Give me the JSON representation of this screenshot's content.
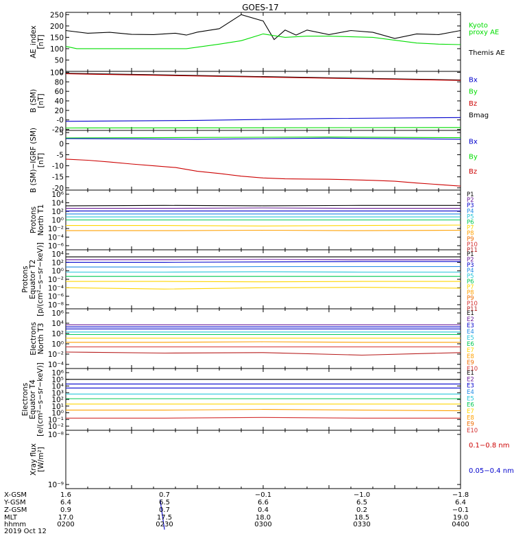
{
  "title": "GOES-17",
  "time_axis": {
    "ticks": [
      "0200",
      "0230",
      "0300",
      "0330",
      "0400"
    ],
    "date": "2019 Oct 12"
  },
  "ephemeris": {
    "labels": [
      "X-GSM",
      "Y-GSM",
      "Z-GSM",
      "MLT",
      "hhmm"
    ],
    "columns": [
      [
        "1.6",
        "6.4",
        "0.9",
        "17.0",
        "0200"
      ],
      [
        "0.7",
        "6.5",
        "0.7",
        "17.5",
        "0230"
      ],
      [
        "−0.1",
        "6.6",
        "0.4",
        "18.0",
        "0300"
      ],
      [
        "−1.0",
        "6.5",
        "0.2",
        "18.5",
        "0330"
      ],
      [
        "−1.8",
        "6.4",
        "−0.1",
        "19.0",
        "0400"
      ]
    ]
  },
  "colors": {
    "black": "#000000",
    "green": "#00dd00",
    "blue": "#0000cc",
    "red": "#cc0000",
    "p_series": [
      "#000000",
      "#6a1b9a",
      "#0000cc",
      "#1e88e5",
      "#26c6da",
      "#00c853",
      "#ffd600",
      "#ffa000",
      "#ef6c00",
      "#d32f2f",
      "#b71c1c"
    ]
  },
  "chart_data": [
    {
      "type": "line",
      "ylabel": "AE_index\n[nT]",
      "ylim": [
        0,
        260
      ],
      "yticks": [
        "0",
        "50",
        "100",
        "150",
        "200",
        "250"
      ],
      "legend": [
        {
          "text": "Kyoto",
          "color": "green"
        },
        {
          "text": "proxy AE",
          "color": "green"
        },
        {
          "text": "Themis AE",
          "color": "black"
        }
      ],
      "series": [
        {
          "name": "Themis AE",
          "color": "black",
          "x": [
            0,
            10,
            20,
            30,
            40,
            50,
            55,
            60,
            70,
            80,
            90,
            95,
            100,
            105,
            110,
            120,
            130,
            140,
            150,
            160,
            170,
            180
          ],
          "y": [
            180,
            168,
            172,
            163,
            162,
            168,
            160,
            173,
            188,
            250,
            222,
            140,
            182,
            160,
            182,
            162,
            180,
            172,
            145,
            165,
            162,
            180
          ]
        },
        {
          "name": "Kyoto proxy AE",
          "color": "green",
          "x": [
            0,
            5,
            20,
            40,
            55,
            70,
            80,
            90,
            100,
            110,
            120,
            140,
            160,
            170,
            180
          ],
          "y": [
            110,
            100,
            100,
            100,
            100,
            120,
            135,
            165,
            150,
            155,
            155,
            150,
            125,
            120,
            118
          ]
        }
      ]
    },
    {
      "type": "line",
      "ylabel": "B (SM)\n[nT]",
      "ylim": [
        -22,
        102
      ],
      "yticks": [
        "-20",
        "-0",
        "20",
        "40",
        "60",
        "80",
        "100"
      ],
      "legend": [
        {
          "text": "Bx",
          "color": "blue"
        },
        {
          "text": "By",
          "color": "green"
        },
        {
          "text": "Bz",
          "color": "red"
        },
        {
          "text": "Bmag",
          "color": "black"
        }
      ],
      "series": [
        {
          "name": "Bmag",
          "color": "black",
          "x": [
            0,
            180
          ],
          "y": [
            98,
            84
          ]
        },
        {
          "name": "Bz",
          "color": "red",
          "x": [
            0,
            180
          ],
          "y": [
            97,
            83
          ]
        },
        {
          "name": "Bx",
          "color": "blue",
          "x": [
            0,
            60,
            120,
            180
          ],
          "y": [
            -3,
            -1,
            3,
            5
          ]
        },
        {
          "name": "By",
          "color": "green",
          "x": [
            0,
            180
          ],
          "y": [
            -17,
            -16
          ]
        }
      ]
    },
    {
      "type": "line",
      "ylabel": "B (SM)−IGRF (SM)\n[nT]",
      "ylim": [
        -21,
        6
      ],
      "yticks": [
        "-20",
        "-15",
        "-10",
        "-5",
        "0",
        "5"
      ],
      "legend": [
        {
          "text": "Bx",
          "color": "blue"
        },
        {
          "text": "By",
          "color": "green"
        },
        {
          "text": "Bz",
          "color": "red"
        }
      ],
      "series": [
        {
          "name": "Bx",
          "color": "blue",
          "x": [
            0,
            60,
            120,
            180
          ],
          "y": [
            2.3,
            2.0,
            2.5,
            2.0
          ]
        },
        {
          "name": "By",
          "color": "green",
          "x": [
            0,
            60,
            120,
            180
          ],
          "y": [
            2.6,
            2.8,
            3.0,
            2.7
          ]
        },
        {
          "name": "Bz",
          "color": "red",
          "x": [
            0,
            10,
            20,
            30,
            40,
            50,
            60,
            70,
            80,
            90,
            100,
            110,
            120,
            130,
            140,
            150,
            160,
            170,
            180
          ],
          "y": [
            -7,
            -7.5,
            -8.3,
            -9.2,
            -10,
            -10.8,
            -12.5,
            -13.5,
            -14.7,
            -15.5,
            -15.9,
            -16.0,
            -16.1,
            -16.3,
            -16.6,
            -17.0,
            -17.8,
            -18.5,
            -19.2
          ]
        }
      ]
    },
    {
      "type": "line",
      "yscale": "log",
      "ylabel": "Protons\nNorth T1",
      "yticks": [
        "10⁶",
        "10⁴",
        "10²",
        "10⁰",
        "10⁻²",
        "10⁻⁴",
        "10⁻⁶"
      ],
      "legend": [
        "P1",
        "P2",
        "P3",
        "P4",
        "P5",
        "P6",
        "P7",
        "P8",
        "P9",
        "P10",
        "P11"
      ],
      "series": [
        {
          "name": "P1",
          "color_index": 0,
          "y": [
            3.3,
            3.4,
            3.3,
            3.4,
            3.4
          ]
        },
        {
          "name": "P2",
          "color_index": 1,
          "y": [
            2.7,
            2.7,
            2.8,
            2.7,
            2.7
          ]
        },
        {
          "name": "P3",
          "color_index": 2,
          "y": [
            2.1,
            2.1,
            2.1,
            2.1,
            2.1
          ]
        },
        {
          "name": "P4",
          "color_index": 3,
          "y": [
            1.4,
            1.4,
            1.4,
            1.4,
            1.4
          ]
        },
        {
          "name": "P5",
          "color_index": 4,
          "y": [
            0.7,
            0.7,
            0.7,
            0.7,
            0.7
          ]
        },
        {
          "name": "P6",
          "color_index": 5,
          "y": [
            0.0,
            0.0,
            0.0,
            0.0,
            0.0
          ]
        },
        {
          "name": "P7",
          "color_index": 6,
          "y": [
            -1.3,
            -1.3,
            -1.4,
            -1.3,
            -1.2
          ]
        },
        {
          "name": "P8",
          "color_index": 7,
          "y": [
            -2.5,
            -2.5,
            -2.4,
            -2.5,
            -2.4
          ]
        }
      ]
    },
    {
      "type": "line",
      "yscale": "log",
      "ylabel": "Protons\nEquator T2\n[p/(cm²−s−sr−keV)]",
      "yticks": [
        "10⁴",
        "10²",
        "10⁰",
        "10⁻²",
        "10⁻⁴",
        "10⁻⁶",
        "10⁻⁸"
      ],
      "legend": [
        "P1",
        "P2",
        "P3",
        "P4",
        "P5",
        "P6",
        "P7",
        "P8",
        "P9",
        "P10",
        "P11"
      ],
      "series": [
        {
          "name": "P1",
          "color_index": 0,
          "y": [
            3.3,
            3.3,
            3.3,
            3.3,
            3.3
          ]
        },
        {
          "name": "P2",
          "color_index": 1,
          "y": [
            2.6,
            2.6,
            2.7,
            2.6,
            2.6
          ]
        },
        {
          "name": "P3",
          "color_index": 2,
          "y": [
            2.0,
            2.0,
            2.1,
            2.2,
            2.2
          ]
        },
        {
          "name": "P4",
          "color_index": 3,
          "y": [
            0.9,
            0.9,
            1.0,
            1.0,
            1.0
          ]
        },
        {
          "name": "P5",
          "color_index": 4,
          "y": [
            -0.3,
            -0.3,
            -0.2,
            -0.3,
            -0.3
          ]
        },
        {
          "name": "P6",
          "color_index": 5,
          "y": [
            -1.3,
            -1.3,
            -1.3,
            -1.3,
            -1.3
          ]
        },
        {
          "name": "P7",
          "color_index": 6,
          "y": [
            -2.5,
            -2.5,
            -2.6,
            -2.5,
            -2.5
          ]
        },
        {
          "name": "P8",
          "color_index": 6,
          "y": [
            -4.0,
            -4.3,
            -4.0,
            -3.9,
            -4.1
          ]
        }
      ]
    },
    {
      "type": "line",
      "yscale": "log",
      "ylabel": "Electrons\nNorth T3",
      "yticks": [
        "10⁶",
        "10⁴",
        "10²",
        "10⁰",
        "10⁻²",
        "10⁻⁴"
      ],
      "legend": [
        "E1",
        "E2",
        "E3",
        "E4",
        "E5",
        "E6",
        "E7",
        "E8",
        "E9",
        "E10"
      ],
      "series": [
        {
          "name": "E1",
          "color_index": 1,
          "y": [
            3.7,
            3.7,
            3.7,
            3.7,
            3.7
          ]
        },
        {
          "name": "E2",
          "color_index": 2,
          "y": [
            3.3,
            3.3,
            3.3,
            3.3,
            3.3
          ]
        },
        {
          "name": "E3",
          "color_index": 2,
          "y": [
            2.9,
            2.9,
            2.9,
            2.9,
            2.9
          ]
        },
        {
          "name": "E4",
          "color_index": 4,
          "y": [
            2.3,
            2.3,
            2.3,
            2.3,
            2.3
          ]
        },
        {
          "name": "E5",
          "color_index": 5,
          "y": [
            1.8,
            1.8,
            1.8,
            1.8,
            1.8
          ]
        },
        {
          "name": "E6",
          "color_index": 6,
          "y": [
            1.1,
            1.1,
            1.1,
            1.1,
            1.1
          ]
        },
        {
          "name": "E7",
          "color_index": 7,
          "y": [
            0.3,
            0.3,
            0.4,
            0.3,
            0.3
          ]
        },
        {
          "name": "E8",
          "color_index": 9,
          "y": [
            -0.6,
            -0.6,
            -0.6,
            -0.6,
            -0.6
          ]
        },
        {
          "name": "E9",
          "color_index": 10,
          "y": [
            -1.6,
            -1.8,
            -1.7,
            -2.2,
            -1.7
          ]
        }
      ]
    },
    {
      "type": "line",
      "yscale": "log",
      "ylabel": "Electrons\nEquator T4\n[e/(cm²−s−sr−keV)]",
      "yticks": [
        "10⁶",
        "10⁵",
        "10⁴",
        "10³",
        "10²",
        "10¹",
        "10⁰",
        "10⁻¹",
        "10⁻²"
      ],
      "legend": [
        "E1",
        "E2",
        "E3",
        "E4",
        "E5",
        "E6",
        "E7",
        "E8",
        "E9",
        "E10"
      ],
      "series": [
        {
          "name": "E1",
          "color_index": 0,
          "y": [
            5.0,
            5.0,
            5.0,
            5.0,
            5.0
          ]
        },
        {
          "name": "E2",
          "color_index": 2,
          "y": [
            4.3,
            4.3,
            4.3,
            4.3,
            4.3
          ]
        },
        {
          "name": "E3",
          "color_index": 2,
          "y": [
            3.7,
            3.7,
            3.7,
            3.7,
            3.7
          ]
        },
        {
          "name": "E4",
          "color_index": 4,
          "y": [
            2.8,
            2.8,
            2.8,
            2.8,
            2.8
          ]
        },
        {
          "name": "E5",
          "color_index": 5,
          "y": [
            2.1,
            2.1,
            2.1,
            2.1,
            2.1
          ]
        },
        {
          "name": "E6",
          "color_index": 6,
          "y": [
            1.3,
            1.3,
            1.3,
            1.3,
            1.3
          ]
        },
        {
          "name": "E7",
          "color_index": 7,
          "y": [
            0.4,
            0.4,
            0.5,
            0.4,
            0.3
          ]
        },
        {
          "name": "E8",
          "color_index": 9,
          "y": [
            -0.8,
            -0.8,
            -0.7,
            -0.8,
            -0.8
          ]
        }
      ]
    },
    {
      "type": "line",
      "yscale": "log",
      "ylabel": "Xray flux\n[W/m²]",
      "yticks": [
        "10⁻⁸",
        "10⁻⁹"
      ],
      "legend": [
        {
          "text": "0.1−0.8 nm",
          "color": "red"
        },
        {
          "text": "0.05−0.4 nm",
          "color": "blue"
        }
      ],
      "series": [
        {
          "name": "0.05−0.4 nm",
          "color": "blue",
          "x": [
            43,
            45
          ],
          "y": [
            -9.3,
            -9.9
          ]
        }
      ]
    }
  ]
}
